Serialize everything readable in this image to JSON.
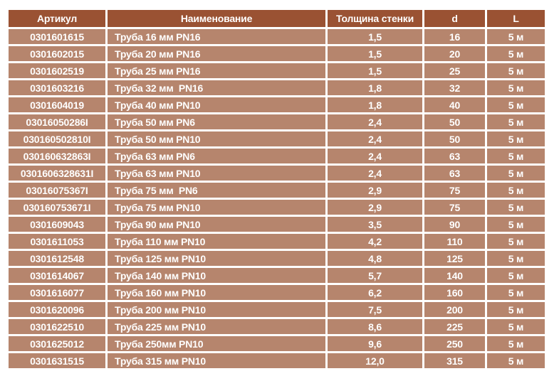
{
  "table": {
    "columns": [
      {
        "key": "article",
        "label": "Артикул"
      },
      {
        "key": "name",
        "label": "Наименование"
      },
      {
        "key": "wall_thickness",
        "label": "Толщина стенки"
      },
      {
        "key": "d",
        "label": "d"
      },
      {
        "key": "length",
        "label": "L"
      }
    ],
    "rows": [
      [
        "0301601615",
        "Труба 16 мм PN16",
        "1,5",
        "16",
        "5 м"
      ],
      [
        "0301602015",
        "Труба 20 мм PN16",
        "1,5",
        "20",
        "5 м"
      ],
      [
        "0301602519",
        "Труба 25 мм PN16",
        "1,5",
        "25",
        "5 м"
      ],
      [
        "0301603216",
        "Труба 32 мм  PN16",
        "1,8",
        "32",
        "5 м"
      ],
      [
        "0301604019",
        "Труба 40 мм PN10",
        "1,8",
        "40",
        "5 м"
      ],
      [
        "03016050286I",
        "Труба 50 мм PN6",
        "2,4",
        "50",
        "5 м"
      ],
      [
        "030160502810I",
        "Труба 50 мм PN10",
        "2,4",
        "50",
        "5 м"
      ],
      [
        "030160632863I",
        "Труба 63 мм PN6",
        "2,4",
        "63",
        "5 м"
      ],
      [
        "0301606328631I",
        "Труба 63 мм PN10",
        "2,4",
        "63",
        "5 м"
      ],
      [
        "03016075367I",
        "Труба 75 мм  PN6",
        "2,9",
        "75",
        "5 м"
      ],
      [
        "030160753671I",
        "Труба 75 мм PN10",
        "2,9",
        "75",
        "5 м"
      ],
      [
        "0301609043",
        "Труба 90 мм PN10",
        "3,5",
        "90",
        "5 м"
      ],
      [
        "0301611053",
        "Труба 110 мм PN10",
        "4,2",
        "110",
        "5 м"
      ],
      [
        "0301612548",
        "Труба 125 мм PN10",
        "4,8",
        "125",
        "5 м"
      ],
      [
        "0301614067",
        "Труба 140 мм PN10",
        "5,7",
        "140",
        "5 м"
      ],
      [
        "0301616077",
        "Труба 160 мм PN10",
        "6,2",
        "160",
        "5 м"
      ],
      [
        "0301620096",
        "Труба 200 мм PN10",
        "7,5",
        "200",
        "5 м"
      ],
      [
        "0301622510",
        "Труба 225 мм PN10",
        "8,6",
        "225",
        "5 м"
      ],
      [
        "0301625012",
        "Труба 250мм PN10",
        "9,6",
        "250",
        "5 м"
      ],
      [
        "0301631515",
        "Труба 315 мм PN10",
        "12,0",
        "315",
        "5 м"
      ]
    ]
  },
  "colors": {
    "header_background": "#9a5233",
    "row_background": "#b6856d",
    "separator": "#ffffff",
    "text": "#ffffff",
    "page_background": "#ffffff"
  }
}
